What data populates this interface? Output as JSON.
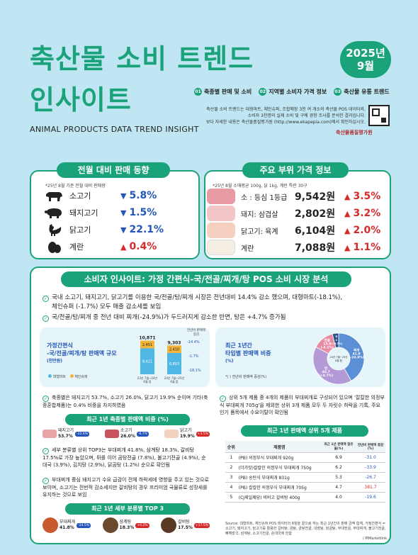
{
  "header": {
    "title_line1": "축산물 소비 트렌드",
    "title_line2": "인사이트",
    "date_year": "2025년",
    "date_month": "9월",
    "subtitle": "ANIMAL PRODUCTS DATA TREND INSIGHT",
    "tags": [
      {
        "num": "01",
        "label": "축종별 판매 및 소비"
      },
      {
        "num": "02",
        "label": "지역별 소비자 가격 정보"
      },
      {
        "num": "03",
        "label": "축산물 유통 트렌드"
      }
    ],
    "desc_lines": [
      "축산물 소비 트렌드는 대형마트, 체인슈퍼, 조합매장 3천 여 개소의 축산물 POS 데이터와,",
      "소비자 3천명의 실제 소비 및 구매 경향 조사를 분석한 결과입니다.",
      "보다 자세한 내용은 축산물품질평가원 (http://www.ekapepia.com)에서 확인하십시오."
    ],
    "logo": "축산물품질평가원"
  },
  "sales": {
    "title": "전월 대비 판매 동향",
    "note": "*25년 8월 기준 전월 대비 판매량",
    "items": [
      {
        "label": "소고기",
        "direction": "down",
        "value": "5.8%",
        "icon": "cow-icon"
      },
      {
        "label": "돼지고기",
        "direction": "down",
        "value": "1.5%",
        "icon": "pig-icon"
      },
      {
        "label": "닭고기",
        "direction": "down",
        "value": "22.1%",
        "icon": "chicken-icon"
      },
      {
        "label": "계란",
        "direction": "up",
        "value": "0.4%",
        "icon": "egg-icon"
      }
    ]
  },
  "prices": {
    "title": "주요 부위 가격 정보",
    "note": "*25년 8월 소매평균 100g, 닭 1kg, 계란 특란 30구",
    "items": [
      {
        "label": "소 : 등심 1등급",
        "price": "9,542원",
        "direction": "up",
        "change": "3.5%",
        "icon": "beef-sirloin-icon"
      },
      {
        "label": "돼지: 삼겹살",
        "price": "2,802원",
        "direction": "up",
        "change": "3.2%",
        "icon": "pork-belly-icon"
      },
      {
        "label": "닭고기: 육계",
        "price": "6,104원",
        "direction": "up",
        "change": "2.0%",
        "icon": "chicken-meat-icon"
      },
      {
        "label": "계란",
        "price": "7,088원",
        "direction": "up",
        "change": "1.1%",
        "icon": "eggs-icon"
      }
    ]
  },
  "insight": {
    "title": "소비자 인사이트: 가정 간편식-국/전골/찌개/탕 POS 소비 시장 분석",
    "points": [
      "국내 소고기, 돼지고기, 닭고기를 이용한 국/전골/탕/찌개 시장은 전년대비 14.4% 감소 했으며, 대형마트(-18.1%),",
      "체인슈퍼 (-1.7%) 모두 매출 감소세를 보임",
      "국/전골/탕/찌개 중 전년 대비 찌개(-24.9%)가 두드러지게 감소한 반면, 탕은 +4.7% 증가됨"
    ],
    "bar_chart": {
      "title_line1": "가정간편식",
      "title_line2": "-국/전골/찌개/탕 판매액 규모",
      "title_line3": "(천만원)",
      "legend_a": "대형마트",
      "legend_b": "체인슈퍼",
      "change_label": "전년비 판매액 증감",
      "total_change": "-14.4%",
      "chain_change": "-1.7%",
      "mart_change": "-18.1%"
    },
    "left_text_1": "축종별은 돼지고기 53.7%, 소고기 26.0%, 닭고기 19.9% 순이며 기타(축종혼합제품)는 0.4% 비중을 차지하였음",
    "share_title": "최근 1년 축종별 판매액 비중 (%)",
    "shares": [
      {
        "label": "돼지고기",
        "value": "53.7%",
        "change": "-22.6%"
      },
      {
        "label": "소고기",
        "value": "26.0%",
        "change": "-6.7%"
      },
      {
        "label": "닭고기",
        "value": "19.9%",
        "change": "+3.5%"
      }
    ],
    "left_text_2": "세부 분류별 상위 TOP3는 부대찌개 41.8%, 삼계탕 18.3%, 갈비탕 17.5%로 가장 높았으며, 뒤를 이어 곰탕전골 (7.8%), 불고기전골 (4.9%), 순대국 (3.9%), 김치탕 (2.9%), 닭곰탕 (1.2%) 순으로 확인됨",
    "left_text_3": "부대찌개 중심 돼지고기 수요 급감이 전체 하락세에 영향을 주고 있는 것으로 보이며, 소고기는 전반적 감소세지만 갈비탕의 경우 프리미엄 국물류로 성장세를 유지하는 것으로 보임",
    "top3_title": "최근 1년 세부 분류별 TOP 3",
    "top3": [
      {
        "label": "부대찌개",
        "value": "41.8%",
        "change": "-24.5%"
      },
      {
        "label": "삼계탕",
        "value": "18.3%",
        "change": "+0.2%"
      },
      {
        "label": "갈비탕",
        "value": "17.5%",
        "change": "+17.5%"
      }
    ],
    "pie": {
      "title_line1": "최근 1년간",
      "title_line2": "타입별 판매액 비중",
      "title_line3": "(%)",
      "note": "*( ) 전년비 판매액 증감(%)",
      "center_label": "24년 7월~25년 6월 합",
      "slices": [
        {
          "name": "찌개",
          "value": 41.8,
          "change": "(-24.9%)",
          "color": "#5b8fd6"
        },
        {
          "name": "탕",
          "value": 40.7,
          "change": "(+4.7%)",
          "color": "#b39ad6"
        },
        {
          "name": "전골",
          "value": 13.5,
          "change": "(-4.1%)",
          "color": "#e98aa3"
        },
        {
          "name": "국",
          "value": 4.0,
          "change": "(-16.7%)",
          "color": "#2c4f8a"
        }
      ]
    },
    "right_text": "상위 5개 제품 중 4개의 제품이 부대찌개로 구성되어 있으며 '칼칼한 의정부식 부대찌개 705g'을 제외한 상위 3개 제품 모두 두 자릿수 하락을 기록, 주요 인기 품목에서 수요이탈이 확인됨",
    "top5_title": "최근 1년 판매액 상위 5개 제품",
    "top5_headers": [
      "순위",
      "제품명",
      "최근 1년 판매액 점유율(%)",
      "전년비 판매액 증감(%)"
    ],
    "top5": [
      {
        "rank": "1",
        "name": "(PB) 의정부식 부대찌개 920g",
        "share": "6.9",
        "change": "-31.0"
      },
      {
        "rank": "2",
        "name": "(더가맛)칼칼한 의정부식 부대찌개 750g",
        "share": "6.2",
        "change": "-33.9"
      },
      {
        "rank": "3",
        "name": "(PB) 송탄식 부대찌개 831g",
        "share": "5.3",
        "change": "-26.7"
      },
      {
        "rank": "4",
        "name": "(PB) 칼칼한 의정부식 부대찌개 705g",
        "share": "4.7",
        "change": "381.7"
      },
      {
        "rank": "5",
        "name": "(CJ제일제당) 비비고 갈비탕 400g",
        "share": "4.0",
        "change": "-19.6"
      }
    ],
    "source": "Source: 대형마트, 체인슈퍼 POS 데이터의 6월을 끝으로 하는 최근 1년간의 판매 금액 합계, 가정간편식 = 소고기, 돼지고기, 닭고기를 활용한 갈비탕, 곰탕, 곰탕전골, 내장탕, 닭곰탕, 부대전골, 부대찌개, 불고기전골, 뼈해장국, 삼계탕, 소고기전골, 순대국에 한함",
    "source_brand": "/ ㈜Marketlink"
  },
  "chart_data": {
    "type": "bar",
    "title": "가정간편식-국/전골/찌개/탕 판매액 규모",
    "ylabel": "(천만원)",
    "categories": [
      "23년 7월~24년 6월 합",
      "24년 7월~25년 6월 합"
    ],
    "series": [
      {
        "name": "대형마트",
        "values": [
          8421,
          6893
        ],
        "color": "#4fb7e3"
      },
      {
        "name": "체인슈퍼",
        "values": [
          2451,
          2410
        ],
        "color": "#f2b43a"
      }
    ],
    "totals": [
      10871,
      9303
    ]
  }
}
